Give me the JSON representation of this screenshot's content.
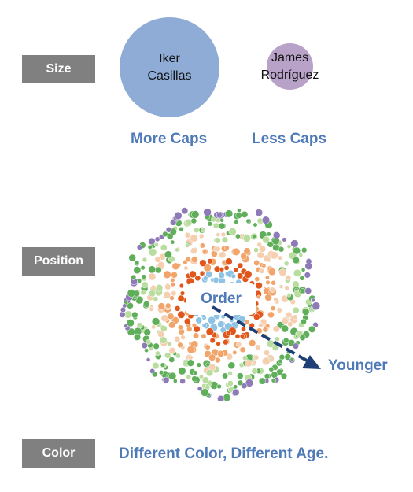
{
  "rows": {
    "size": {
      "label": "Size",
      "big_bubble": {
        "line1": "Iker",
        "line2": "Casillas"
      },
      "small_bubble": {
        "line1": "James",
        "line2": "Rodríguez"
      },
      "more_caps": "More Caps",
      "less_caps": "Less Caps"
    },
    "position": {
      "label": "Position",
      "order": "Order",
      "younger": "Younger"
    },
    "color": {
      "label": "Color",
      "caption": "Different Color, Different  Age."
    }
  },
  "colors": {
    "label_box": "#808080",
    "caption_text": "#4f7ab8",
    "big_bubble": "#8eacd6",
    "small_bubble": "#b8a2c8",
    "arrow": "#1f3f77",
    "age_rings": [
      "#8ec3e6",
      "#e0561b",
      "#f2a56a",
      "#f5cfb0",
      "#5fae5a",
      "#b9dd9e",
      "#8f7ab8"
    ]
  }
}
